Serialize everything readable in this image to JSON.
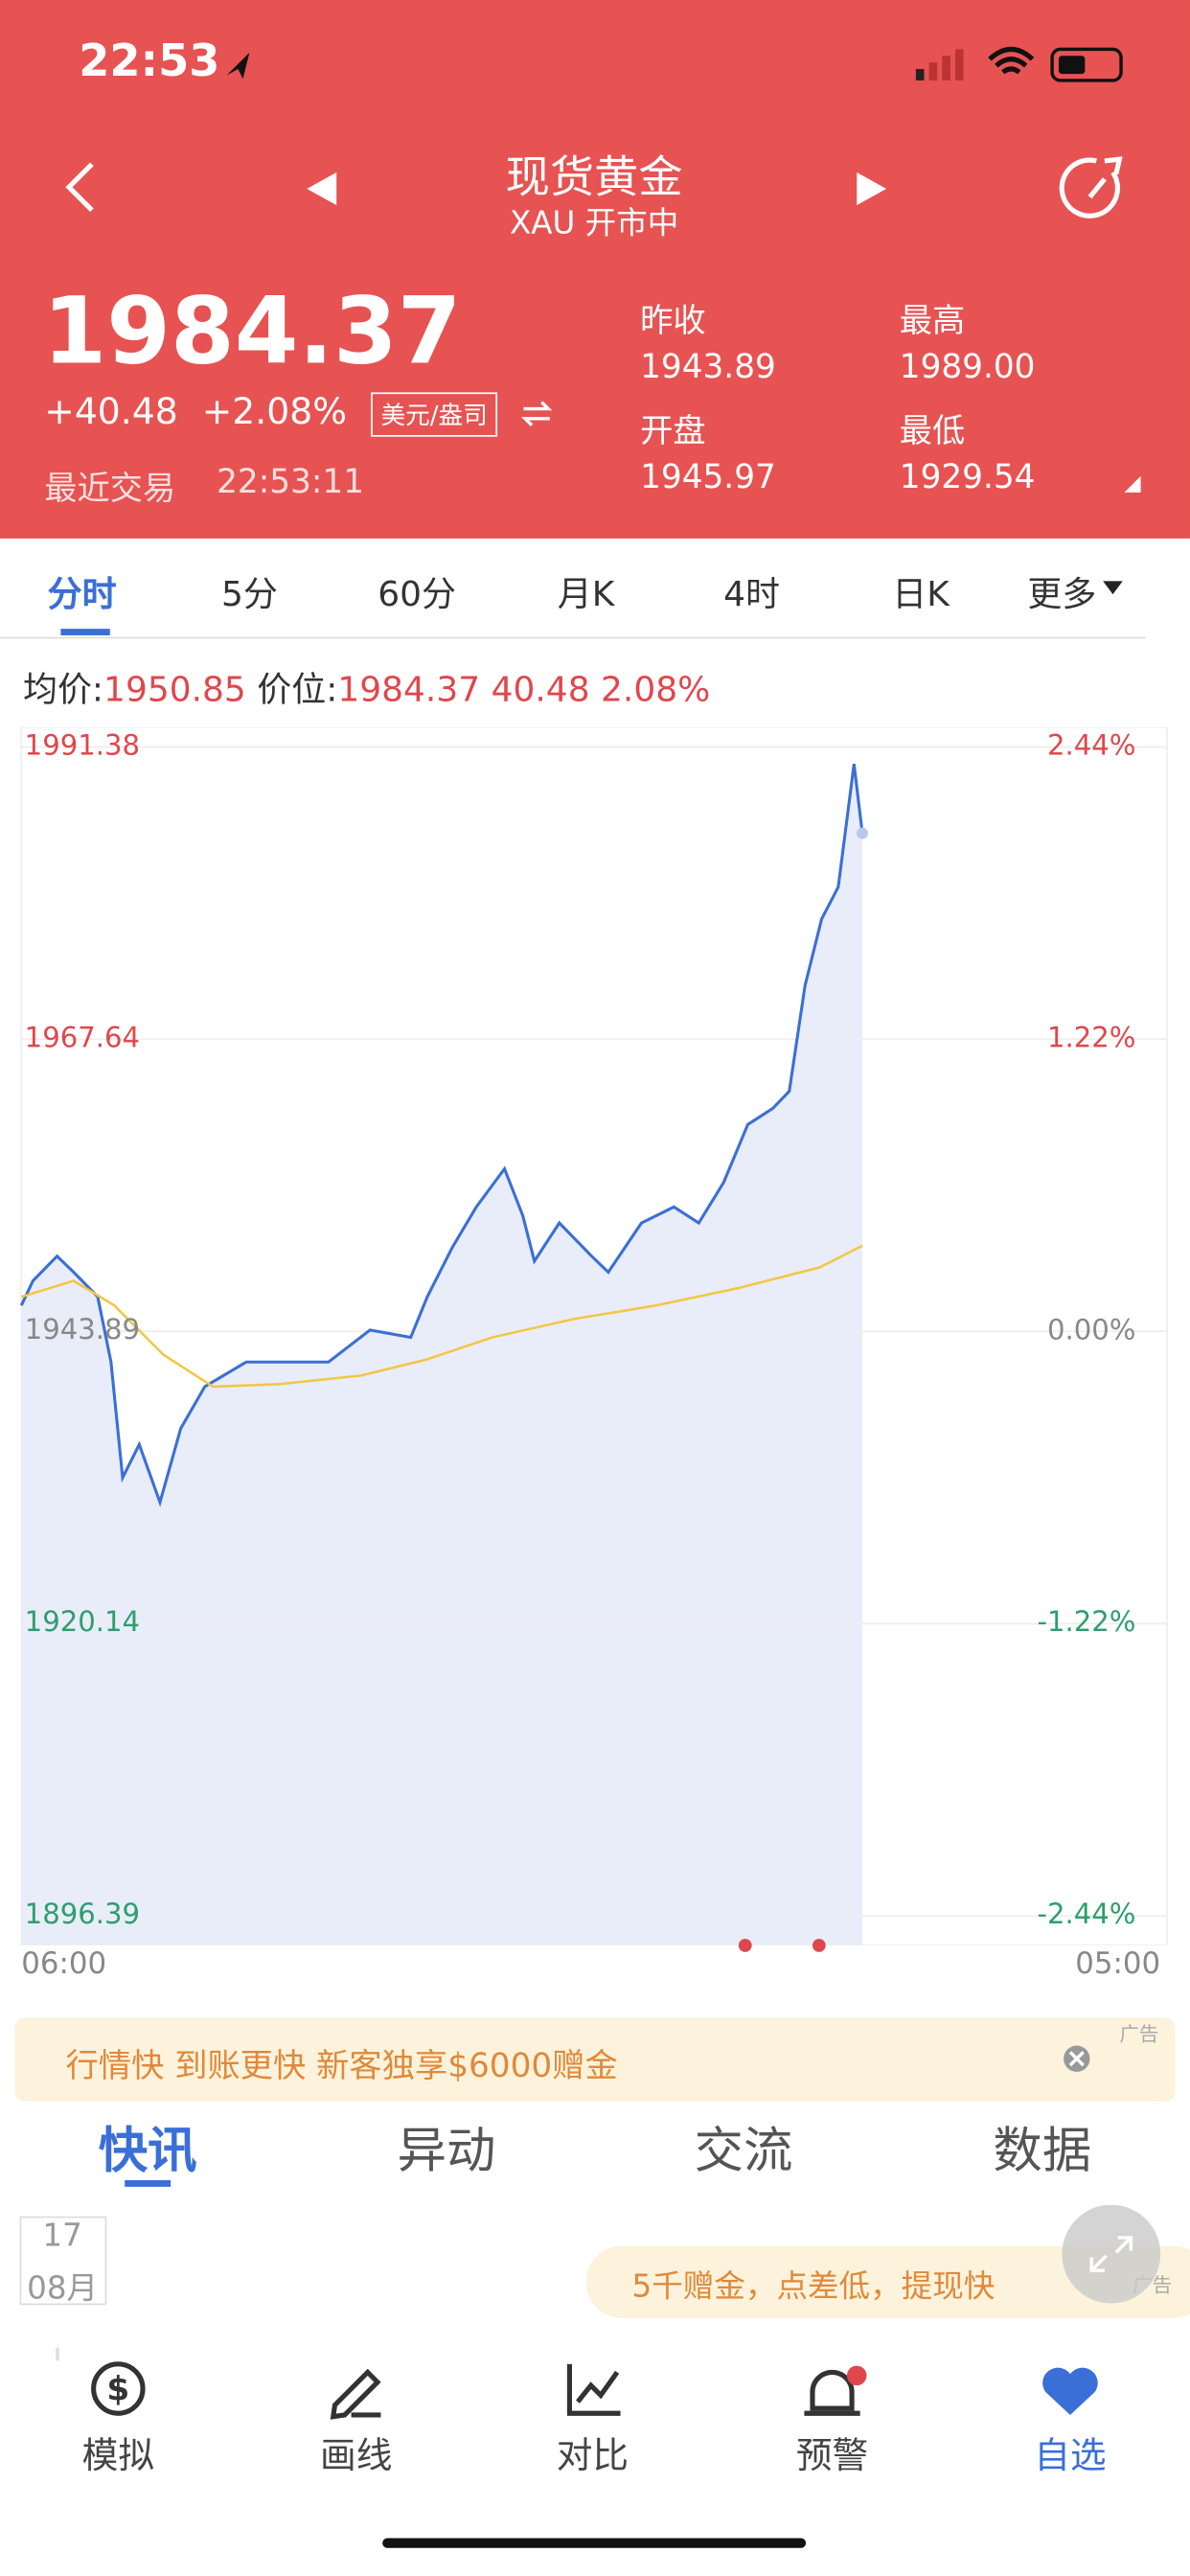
{
  "status_bar": {
    "time": "22:53"
  },
  "header": {
    "title": "现货黄金",
    "subtitle": "XAU 开市中"
  },
  "quote": {
    "price": "1984.37",
    "change": "+40.48",
    "change_pct": "+2.08%",
    "unit": "美元/盎司",
    "last_trade_label": "最近交易",
    "last_trade_time": "22:53:11",
    "stats": [
      {
        "label": "昨收",
        "value": "1943.89"
      },
      {
        "label": "开盘",
        "value": "1945.97"
      },
      {
        "label": "最高",
        "value": "1989.00"
      },
      {
        "label": "最低",
        "value": "1929.54"
      }
    ]
  },
  "tabs": [
    "分时",
    "5分",
    "60分",
    "月K",
    "4时",
    "日K",
    "更多"
  ],
  "price_info": {
    "avg_label": "均价:",
    "avg_value": "1950.85",
    "price_label": "价位:",
    "price_value": "1984.37",
    "change": "40.48",
    "change_pct": "2.08%"
  },
  "chart_data": {
    "type": "line",
    "xlim": [
      "06:00",
      "05:00"
    ],
    "xticks": [
      "06:00",
      "05:00"
    ],
    "ylim": [
      1896.39,
      1991.38
    ],
    "yticks": [
      1991.38,
      1967.64,
      1943.89,
      1920.14,
      1896.39
    ],
    "y2lim": [
      -2.44,
      2.44
    ],
    "y2ticks": [
      {
        "value": 2.44,
        "label": "2.44%"
      },
      {
        "value": 1.22,
        "label": "1.22%"
      },
      {
        "value": 0,
        "label": "0.00%"
      },
      {
        "value": -1.22,
        "label": "-1.22%"
      },
      {
        "value": -2.44,
        "label": "-2.44%"
      }
    ],
    "grid": true,
    "series": [
      {
        "name": "价位",
        "color": "#3b6fd6",
        "x": [
          "06:00",
          "06:14",
          "06:43",
          "07:03",
          "07:32",
          "07:48",
          "08:02",
          "08:22",
          "08:47",
          "09:12",
          "09:41",
          "10:31",
          "11:21",
          "12:10",
          "13:00",
          "13:49",
          "14:09",
          "14:39",
          "15:08",
          "15:42",
          "16:04",
          "16:18",
          "16:48",
          "17:27",
          "17:47",
          "18:27",
          "19:06",
          "19:36",
          "20:06",
          "20:35",
          "21:05",
          "21:25",
          "21:44",
          "22:04",
          "22:24",
          "22:43",
          "22:53"
        ],
        "values": [
          1946.0,
          1948.0,
          1950.0,
          1948.7,
          1946.7,
          1941.4,
          1932.0,
          1934.7,
          1930.0,
          1936.0,
          1939.4,
          1941.4,
          1941.4,
          1941.4,
          1944.0,
          1943.4,
          1946.7,
          1950.7,
          1954.0,
          1957.1,
          1953.3,
          1949.6,
          1952.7,
          1950.0,
          1948.7,
          1952.7,
          1954.0,
          1952.7,
          1956.0,
          1960.7,
          1962.0,
          1963.4,
          1972.0,
          1977.4,
          1980.0,
          1990.0,
          1984.37
        ]
      },
      {
        "name": "均价",
        "color": "#f2c744",
        "x": [
          "06:00",
          "07:03",
          "07:52",
          "08:51",
          "09:51",
          "11:10",
          "12:49",
          "14:08",
          "15:27",
          "17:06",
          "18:45",
          "20:23",
          "22:02",
          "22:53"
        ],
        "values": [
          1946.7,
          1948.0,
          1946.0,
          1942.0,
          1939.4,
          1939.6,
          1940.3,
          1941.6,
          1943.4,
          1944.9,
          1946.0,
          1947.4,
          1949.1,
          1950.85
        ]
      }
    ]
  },
  "ad_banner": {
    "text": "行情快 到账更快 新客独享$6000赠金",
    "tag": "广告"
  },
  "news_tabs": [
    "快讯",
    "异动",
    "交流",
    "数据"
  ],
  "date_box": {
    "day": "17",
    "month": "08月"
  },
  "ad_pill": {
    "text": "5千赠金，点差低，提现快",
    "tag": "广告"
  },
  "bottom_nav": [
    "模拟",
    "画线",
    "对比",
    "预警",
    "自选"
  ]
}
